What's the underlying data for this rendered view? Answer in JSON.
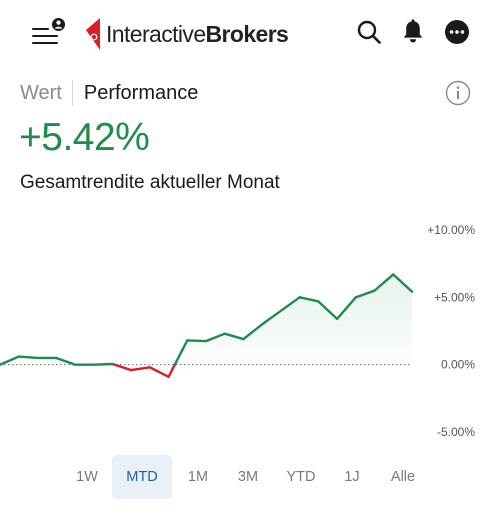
{
  "header": {
    "logo": {
      "text_regular": "Interactive",
      "text_bold": "Brokers"
    },
    "icons": {
      "menu": "menu-icon",
      "notification_badge": "user-badge-icon",
      "search": "search-icon",
      "bell": "bell-icon",
      "more": "more-icon"
    },
    "colors": {
      "brand_red": "#d81f26"
    }
  },
  "tabs": [
    {
      "label": "Wert",
      "active": false
    },
    {
      "label": "Performance",
      "active": true
    }
  ],
  "info_icon": "info-icon",
  "summary": {
    "value": "+5.42%",
    "label": "Gesamtrendite aktueller Monat",
    "color": "#1f8b4c"
  },
  "chart_data": {
    "type": "line",
    "y_ticks": [
      "+10.00%",
      "+5.00%",
      "0.00%",
      "-5.00%"
    ],
    "y_tick_values": [
      10,
      5,
      0,
      -5
    ],
    "ylim": [
      -5,
      10
    ],
    "baseline": 0,
    "series": [
      {
        "values": [
          0.0,
          0.6,
          0.5,
          0.5,
          0.0,
          0.0,
          0.05,
          -0.4,
          -0.2,
          -0.9,
          1.8,
          1.75,
          2.3,
          1.9,
          3.0,
          4.0,
          5.0,
          4.7,
          3.4,
          5.0,
          5.5,
          6.7,
          5.42
        ]
      }
    ],
    "colors": {
      "positive": "#1f8b4c",
      "negative": "#d81f2a",
      "area_fill": "#e6f3ec"
    }
  },
  "ranges": [
    {
      "label": "1W",
      "active": false
    },
    {
      "label": "MTD",
      "active": true
    },
    {
      "label": "1M",
      "active": false
    },
    {
      "label": "3M",
      "active": false
    },
    {
      "label": "YTD",
      "active": false
    },
    {
      "label": "1J",
      "active": false
    },
    {
      "label": "Alle",
      "active": false
    }
  ]
}
